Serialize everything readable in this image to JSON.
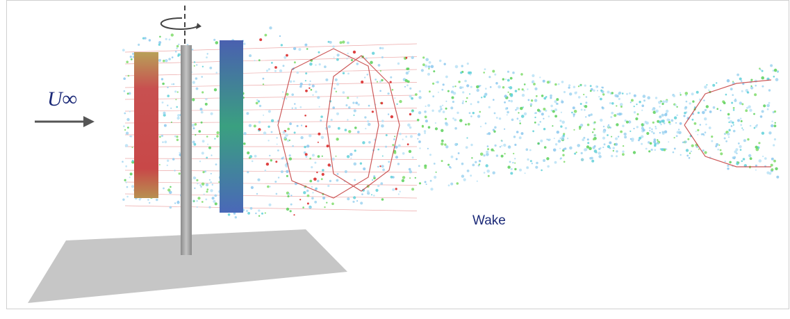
{
  "labels": {
    "freestream": "U∞",
    "wake": "Wake"
  }
}
